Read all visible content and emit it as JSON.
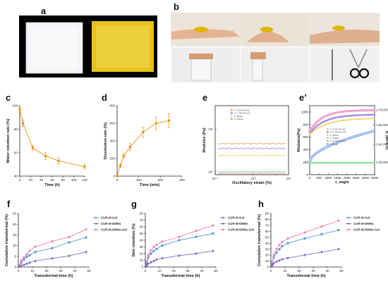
{
  "panels": {
    "a": "a",
    "b": "b",
    "c": "c",
    "d": "d",
    "e": "e",
    "e2": "e’",
    "f": "f",
    "g": "g",
    "h": "h"
  },
  "colors": {
    "orange": "#e8900f",
    "blue": "#5b9bd5",
    "purple": "#7b6fc9",
    "pink": "#f07fb0",
    "pink_band": "#f4a6d0",
    "purple_band": "#a58ae0",
    "yellow_band": "#f5d56e",
    "blue_band": "#a8c4f0",
    "green_band": "#86e29a"
  },
  "chart_data": [
    {
      "id": "c",
      "type": "line",
      "title": "",
      "xlabel": "Time (h)",
      "ylabel": "Water retention rate (%)",
      "xlim": [
        0,
        120
      ],
      "ylim": [
        40,
        100
      ],
      "xticks": [
        0,
        20,
        40,
        60,
        80,
        100,
        120
      ],
      "yticks": [
        40,
        60,
        80,
        100
      ],
      "series": [
        {
          "x": [
            0,
            6,
            24,
            48,
            72,
            120
          ],
          "y": [
            97,
            85,
            64,
            57,
            53,
            48
          ],
          "err": [
            2,
            3,
            2,
            3,
            3,
            2
          ]
        }
      ]
    },
    {
      "id": "d",
      "type": "line",
      "title": "",
      "xlabel": "Time (min)",
      "ylabel": "Dissolution rate (%)",
      "xlim": [
        0,
        300
      ],
      "ylim": [
        0,
        800
      ],
      "xticks": [
        0,
        100,
        200,
        300
      ],
      "yticks": [
        0,
        200,
        400,
        600,
        800
      ],
      "series": [
        {
          "x": [
            0,
            15,
            30,
            60,
            120,
            180,
            240
          ],
          "y": [
            0,
            120,
            230,
            330,
            500,
            600,
            630
          ],
          "err": [
            0,
            20,
            30,
            40,
            60,
            70,
            80
          ]
        }
      ]
    },
    {
      "id": "e",
      "type": "line",
      "title": "",
      "xlabel": "Oscillatory strain (%)",
      "ylabel": "Modulus (Pa)",
      "xscale": "log",
      "yscale": "log",
      "xticks": [
        "10⁻¹",
        "10⁰",
        "10¹"
      ],
      "yticks": [
        "10¹",
        "10²"
      ],
      "legend": [
        "G’ CUR-M-GEL",
        "G” CUR-M-GEL",
        "G’ Blank",
        "G” Blank"
      ]
    },
    {
      "id": "e2",
      "type": "line",
      "title": "",
      "xlabel": "t_seg/s",
      "ylabel": "Modulus(Pa)",
      "y2label": "η’ (MPa·s)",
      "xticks": [
        0,
        500,
        1000,
        1500,
        2000,
        2500,
        3000,
        3500
      ],
      "yticks": [
        0,
        200,
        400,
        600,
        800,
        1000
      ],
      "y2ticks": [
        "1,20,000",
        "1,40,000",
        "1,60,000",
        "1,70,000"
      ],
      "legend": [
        "G’ CUR-M-GEL",
        "G” CUR-M-GEL",
        "G’ Blank",
        "G” Blank",
        "η’ CUR-M-GEL",
        "η’ Blank"
      ]
    },
    {
      "id": "f",
      "type": "line",
      "xlabel": "Transdermal time (h)",
      "ylabel": "Cumulative transdermal (%)",
      "xlim": [
        0,
        50
      ],
      "ylim": [
        0,
        25
      ],
      "xticks": [
        0,
        10,
        20,
        30,
        40,
        50
      ],
      "yticks": [
        0,
        5,
        10,
        15,
        20,
        25
      ],
      "x": [
        1,
        2,
        4,
        6,
        8,
        12,
        24,
        36,
        48
      ],
      "series": [
        {
          "name": "CUR-M-Gel",
          "y": [
            0.5,
            2.0,
            3.5,
            4.8,
            5.5,
            7.0,
            8.8,
            11.5,
            13.8
          ]
        },
        {
          "name": "CUR-M-DMNs",
          "y": [
            0.2,
            0.6,
            1.0,
            1.5,
            2.0,
            2.8,
            4.0,
            5.2,
            7.0
          ]
        },
        {
          "name": "CUR-M-DMNs-Gel",
          "y": [
            1.0,
            3.0,
            4.5,
            6.0,
            7.5,
            9.5,
            12.0,
            14.0,
            17.5
          ]
        }
      ],
      "legend_position": "right"
    },
    {
      "id": "g",
      "type": "line",
      "xlabel": "Transdermal time (h)",
      "ylabel": "Skin retention (%)",
      "xlim": [
        0,
        50
      ],
      "ylim": [
        0,
        80
      ],
      "xticks": [
        0,
        10,
        20,
        30,
        40,
        50
      ],
      "yticks": [
        0,
        10,
        20,
        30,
        40,
        50,
        60,
        70,
        80
      ],
      "x": [
        1,
        2,
        4,
        6,
        8,
        12,
        24,
        36,
        48
      ],
      "series": [
        {
          "name": "CUR-M-Gel",
          "y": [
            5,
            14,
            20,
            24,
            27,
            32,
            40,
            45,
            50
          ]
        },
        {
          "name": "CUR-M-DMNs",
          "y": [
            2,
            5,
            7,
            9,
            11,
            13,
            17,
            20,
            24
          ]
        },
        {
          "name": "CUR-M-DMNs-Gel",
          "y": [
            8,
            18,
            25,
            30,
            33,
            38,
            45,
            54,
            62
          ]
        }
      ],
      "legend_position": "right"
    },
    {
      "id": "h",
      "type": "line",
      "xlabel": "Transdermal time (h)",
      "ylabel": "Cumulative transdermal (%)",
      "xlim": [
        0,
        50
      ],
      "ylim": [
        0,
        90
      ],
      "xticks": [
        0,
        10,
        20,
        30,
        40,
        50
      ],
      "yticks": [
        0,
        10,
        20,
        30,
        40,
        50,
        60,
        70,
        80,
        90
      ],
      "x": [
        1,
        2,
        4,
        6,
        8,
        12,
        24,
        36,
        48
      ],
      "series": [
        {
          "name": "CUR-M-Gel",
          "y": [
            5,
            16,
            24,
            30,
            35,
            40,
            48,
            55,
            62
          ]
        },
        {
          "name": "CUR-M-DMNs",
          "y": [
            2,
            6,
            9,
            11,
            13,
            15,
            20,
            25,
            30
          ]
        },
        {
          "name": "CUR-M-DMNs-Gel",
          "y": [
            8,
            20,
            30,
            37,
            42,
            48,
            58,
            68,
            78
          ]
        }
      ],
      "legend_position": "right"
    }
  ]
}
